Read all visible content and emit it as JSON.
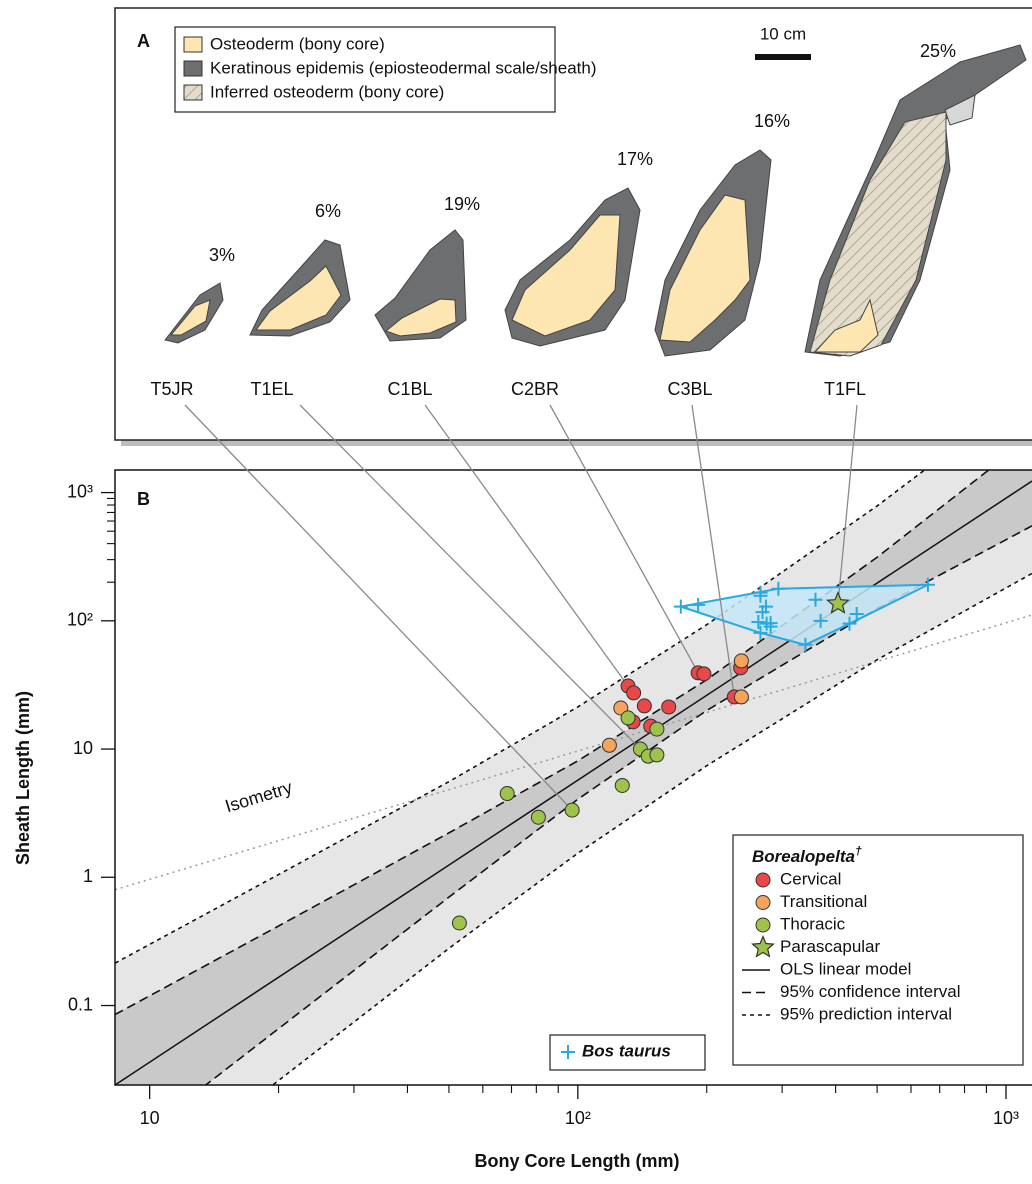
{
  "panel_a": {
    "label": "A",
    "legend": [
      "Osteoderm (bony core)",
      "Keratinous epidemis (epiosteodermal scale/sheath)",
      "Inferred osteoderm (bony core)"
    ],
    "scale_bar": "10 cm",
    "specimens": [
      {
        "name": "T5JR",
        "percent": "3%"
      },
      {
        "name": "T1EL",
        "percent": "6%"
      },
      {
        "name": "C1BL",
        "percent": "19%"
      },
      {
        "name": "C2BR",
        "percent": "17%"
      },
      {
        "name": "C3BL",
        "percent": "16%"
      },
      {
        "name": "T1FL",
        "percent": "25%"
      }
    ]
  },
  "chart_data": {
    "type": "scatter",
    "panel_label": "B",
    "x_label": "Bony Core Length (mm)",
    "y_label": "Sheath Length (mm)",
    "log_x": true,
    "log_y": true,
    "xlim": [
      8.3,
      1150
    ],
    "ylim": [
      0.024,
      1500
    ],
    "xticks": [
      10,
      {
        "value": 100,
        "label": "10²"
      },
      {
        "value": 1000,
        "label": "10³"
      }
    ],
    "xminorticks": [
      20,
      30,
      40,
      50,
      60,
      70,
      80,
      90,
      200,
      300,
      400,
      500,
      600,
      700,
      800,
      900
    ],
    "yticks": [
      {
        "value": 0.1,
        "label": "0.1"
      },
      1,
      10,
      {
        "value": 100,
        "label": "10²"
      },
      {
        "value": 1000,
        "label": "10³"
      }
    ],
    "yminorticks": [
      200,
      300,
      400,
      500,
      600,
      700,
      800,
      900
    ],
    "legend_title": "Borealopelta",
    "legend_title_mark": "†",
    "legend_position": "lower right",
    "series": [
      {
        "name": "Cervical",
        "marker": "circle",
        "color": "#e8484a",
        "x": [
          131,
          135,
          134.6,
          143,
          148,
          163,
          191,
          197,
          240,
          232
        ],
        "values": [
          31,
          27.4,
          16.3,
          21.7,
          15.1,
          21.3,
          39.3,
          38.6,
          43,
          25.5
        ]
      },
      {
        "name": "Transitional",
        "marker": "circle",
        "color": "#f6a45c",
        "x": [
          126,
          118.5,
          241,
          241
        ],
        "values": [
          20.9,
          10.7,
          48.7,
          25.5
        ]
      },
      {
        "name": "Thoracic",
        "marker": "circle",
        "color": "#9dc34b",
        "x": [
          131,
          153,
          140,
          146,
          153,
          127,
          68.4,
          80.9,
          97,
          52.9
        ],
        "values": [
          17.5,
          14.3,
          10,
          8.8,
          9.0,
          5.2,
          4.5,
          2.94,
          3.34,
          0.44
        ]
      },
      {
        "name": "Parascapular",
        "marker": "star",
        "color": "#9dc34b",
        "x": [
          405
        ],
        "values": [
          136
        ]
      },
      {
        "name": "Bos taurus",
        "marker": "plus",
        "color": "#29a9e0",
        "hull_fill": "#c4e6f7",
        "x": [
          174,
          191,
          264,
          267,
          294,
          275,
          270,
          267,
          276,
          282,
          282,
          359,
          369,
          340,
          431,
          448,
          657,
          267
        ],
        "values": [
          129,
          133,
          98,
          166,
          178,
          129,
          117,
          80.5,
          95,
          90,
          96,
          146,
          100,
          65,
          95,
          113,
          191,
          157
        ]
      }
    ],
    "lines": [
      {
        "name": "OLS linear model",
        "style": "solid",
        "x": [
          8.3,
          1150
        ],
        "values": [
          0.024,
          1230
        ]
      }
    ],
    "bands": [
      {
        "name": "95% prediction interval",
        "style": "dotted",
        "fill": "#e6e6e6",
        "x": [
          8.3,
          20,
          50,
          100,
          200,
          500,
          1150
        ],
        "upper": [
          0.214,
          1.05,
          5.57,
          21.3,
          93.3,
          787,
          6457
        ],
        "lower": [
          0.0027,
          0.026,
          0.279,
          1.54,
          7.41,
          49.7,
          234
        ]
      },
      {
        "name": "95% confidence interval",
        "style": "dashed",
        "fill": "#c9c9c9",
        "x": [
          8.3,
          20,
          50,
          100,
          200,
          500,
          1150
        ],
        "upper": [
          0.085,
          0.417,
          2.22,
          8.09,
          34.7,
          313,
          2754
        ],
        "lower": [
          0.0068,
          0.066,
          0.7,
          4.06,
          20.0,
          125,
          550
        ]
      }
    ],
    "isometry": {
      "name": "Isometry",
      "x": [
        8.3,
        1150
      ],
      "values": [
        0.8,
        111
      ]
    }
  }
}
